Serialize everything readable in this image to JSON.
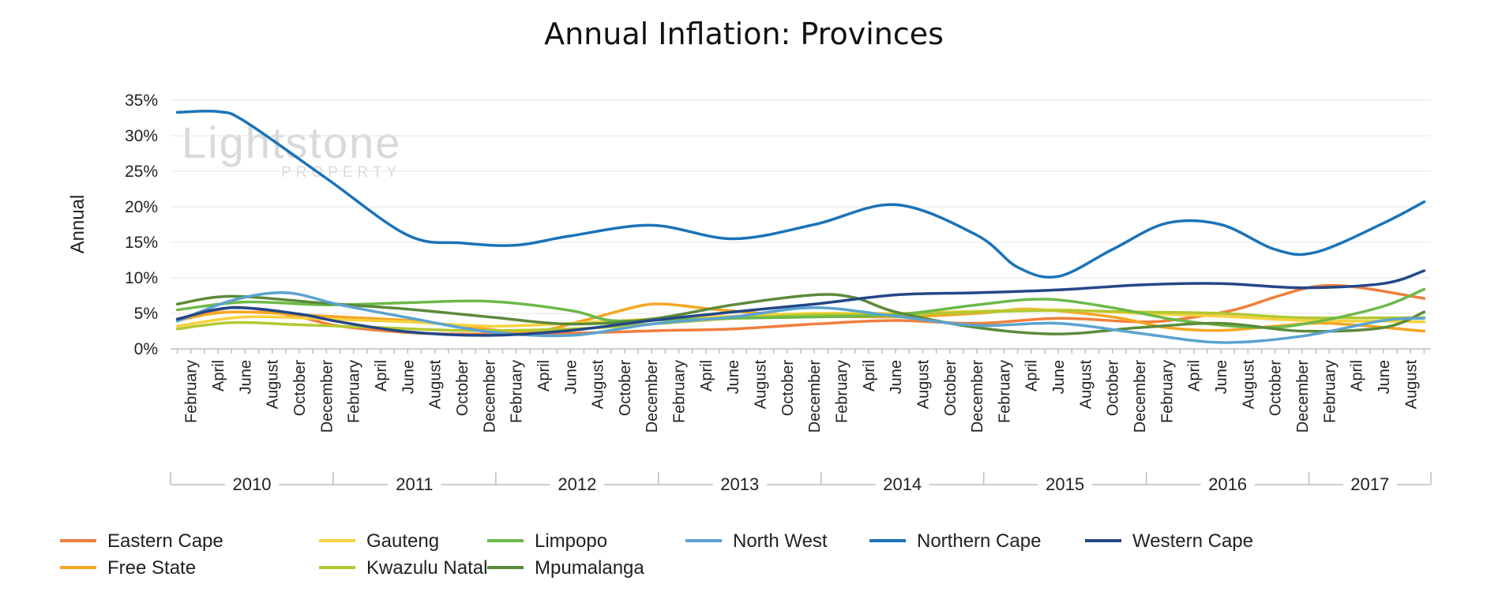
{
  "watermark": {
    "brand": "Lightstone",
    "sub": "PROPERTY"
  },
  "chart_data": {
    "type": "line",
    "title": "Annual Inflation: Provinces",
    "ylabel": "Annual",
    "xlabel": "",
    "ylim": [
      0,
      35
    ],
    "yticks": [
      0,
      5,
      10,
      15,
      20,
      25,
      30,
      35
    ],
    "ytick_format": "percent",
    "grid": true,
    "legend_position": "bottom",
    "x_start": "2010-01",
    "x_end": "2017-09",
    "months_visible": [
      "February",
      "April",
      "June",
      "August",
      "October",
      "December"
    ],
    "years": [
      "2010",
      "2011",
      "2012",
      "2013",
      "2014",
      "2015",
      "2016",
      "2017"
    ],
    "series": [
      {
        "name": "Eastern Cape",
        "color": "#F07F3C",
        "points": [
          [
            "2010-01",
            4.2
          ],
          [
            "2010-04",
            5.5
          ],
          [
            "2010-06",
            5.8
          ],
          [
            "2010-10",
            4.5
          ],
          [
            "2011-01",
            3.2
          ],
          [
            "2011-06",
            2.3
          ],
          [
            "2011-10",
            2.1
          ],
          [
            "2012-06",
            2.2
          ],
          [
            "2013-01",
            2.6
          ],
          [
            "2013-06",
            2.8
          ],
          [
            "2013-12",
            3.5
          ],
          [
            "2014-06",
            4.0
          ],
          [
            "2014-12",
            3.6
          ],
          [
            "2015-06",
            4.3
          ],
          [
            "2015-12",
            3.8
          ],
          [
            "2016-03",
            4.2
          ],
          [
            "2016-07",
            5.5
          ],
          [
            "2016-10",
            7.3
          ],
          [
            "2017-01",
            8.8
          ],
          [
            "2017-04",
            8.7
          ],
          [
            "2017-09",
            7.1
          ]
        ]
      },
      {
        "name": "Free State",
        "color": "#F5A623",
        "points": [
          [
            "2010-01",
            4.0
          ],
          [
            "2010-05",
            5.2
          ],
          [
            "2010-12",
            4.6
          ],
          [
            "2011-06",
            4.0
          ],
          [
            "2011-10",
            3.2
          ],
          [
            "2012-03",
            2.4
          ],
          [
            "2012-07",
            4.0
          ],
          [
            "2012-11",
            6.0
          ],
          [
            "2013-01",
            6.3
          ],
          [
            "2013-05",
            5.5
          ],
          [
            "2013-10",
            4.8
          ],
          [
            "2014-06",
            4.5
          ],
          [
            "2014-12",
            5.0
          ],
          [
            "2015-04",
            5.6
          ],
          [
            "2015-10",
            4.5
          ],
          [
            "2016-02",
            3.0
          ],
          [
            "2016-06",
            2.6
          ],
          [
            "2016-10",
            3.2
          ],
          [
            "2017-02",
            3.6
          ],
          [
            "2017-09",
            2.5
          ]
        ]
      },
      {
        "name": "Gauteng",
        "color": "#F7D13C",
        "points": [
          [
            "2010-01",
            3.2
          ],
          [
            "2010-06",
            4.5
          ],
          [
            "2010-12",
            4.2
          ],
          [
            "2011-06",
            3.8
          ],
          [
            "2011-12",
            3.2
          ],
          [
            "2012-06",
            3.6
          ],
          [
            "2012-12",
            4.2
          ],
          [
            "2013-06",
            4.6
          ],
          [
            "2013-12",
            5.0
          ],
          [
            "2014-06",
            5.0
          ],
          [
            "2014-12",
            5.3
          ],
          [
            "2015-06",
            5.5
          ],
          [
            "2015-12",
            5.0
          ],
          [
            "2016-06",
            4.6
          ],
          [
            "2016-12",
            4.0
          ],
          [
            "2017-06",
            3.9
          ],
          [
            "2017-09",
            3.8
          ]
        ]
      },
      {
        "name": "Kwazulu Natal",
        "color": "#B3C832",
        "points": [
          [
            "2010-01",
            2.8
          ],
          [
            "2010-05",
            3.7
          ],
          [
            "2010-10",
            3.4
          ],
          [
            "2011-04",
            3.0
          ],
          [
            "2011-10",
            2.6
          ],
          [
            "2012-06",
            2.8
          ],
          [
            "2012-12",
            3.5
          ],
          [
            "2013-06",
            4.3
          ],
          [
            "2013-12",
            4.8
          ],
          [
            "2014-06",
            4.8
          ],
          [
            "2014-12",
            5.2
          ],
          [
            "2015-06",
            5.4
          ],
          [
            "2015-12",
            5.2
          ],
          [
            "2016-06",
            5.0
          ],
          [
            "2016-12",
            4.4
          ],
          [
            "2017-09",
            4.4
          ]
        ]
      },
      {
        "name": "Limpopo",
        "color": "#6CB949",
        "points": [
          [
            "2010-01",
            5.5
          ],
          [
            "2010-06",
            6.6
          ],
          [
            "2010-12",
            6.2
          ],
          [
            "2011-06",
            6.5
          ],
          [
            "2011-12",
            6.7
          ],
          [
            "2012-06",
            5.4
          ],
          [
            "2012-09",
            4.0
          ],
          [
            "2013-01",
            4.1
          ],
          [
            "2013-06",
            4.3
          ],
          [
            "2013-12",
            4.5
          ],
          [
            "2014-06",
            4.8
          ],
          [
            "2014-12",
            6.2
          ],
          [
            "2015-05",
            7.0
          ],
          [
            "2015-10",
            5.8
          ],
          [
            "2016-03",
            4.0
          ],
          [
            "2016-09",
            3.0
          ],
          [
            "2017-01",
            3.8
          ],
          [
            "2017-06",
            6.0
          ],
          [
            "2017-09",
            8.4
          ]
        ]
      },
      {
        "name": "Mpumalanga",
        "color": "#5B8A3A",
        "points": [
          [
            "2010-01",
            6.3
          ],
          [
            "2010-05",
            7.4
          ],
          [
            "2010-12",
            6.4
          ],
          [
            "2011-06",
            5.6
          ],
          [
            "2011-12",
            4.5
          ],
          [
            "2012-06",
            3.5
          ],
          [
            "2012-12",
            4.2
          ],
          [
            "2013-06",
            6.2
          ],
          [
            "2013-12",
            7.6
          ],
          [
            "2014-03",
            7.2
          ],
          [
            "2014-06",
            5.2
          ],
          [
            "2014-12",
            3.0
          ],
          [
            "2015-06",
            2.1
          ],
          [
            "2015-12",
            3.0
          ],
          [
            "2016-06",
            3.6
          ],
          [
            "2016-12",
            2.5
          ],
          [
            "2017-06",
            3.0
          ],
          [
            "2017-09",
            5.2
          ]
        ]
      },
      {
        "name": "North West",
        "color": "#5BA3D0",
        "points": [
          [
            "2010-01",
            3.9
          ],
          [
            "2010-05",
            6.8
          ],
          [
            "2010-09",
            7.9
          ],
          [
            "2011-01",
            6.2
          ],
          [
            "2011-06",
            4.4
          ],
          [
            "2011-12",
            2.4
          ],
          [
            "2012-06",
            1.9
          ],
          [
            "2012-12",
            3.5
          ],
          [
            "2013-06",
            4.5
          ],
          [
            "2013-12",
            5.8
          ],
          [
            "2014-06",
            4.6
          ],
          [
            "2014-12",
            3.3
          ],
          [
            "2015-06",
            3.6
          ],
          [
            "2015-12",
            2.2
          ],
          [
            "2016-06",
            0.9
          ],
          [
            "2016-12",
            1.8
          ],
          [
            "2017-06",
            4.0
          ],
          [
            "2017-09",
            4.3
          ]
        ]
      },
      {
        "name": "Northern Cape",
        "color": "#1A73B8",
        "points": [
          [
            "2010-01",
            33.3
          ],
          [
            "2010-04",
            33.4
          ],
          [
            "2010-06",
            32.0
          ],
          [
            "2010-12",
            24.0
          ],
          [
            "2011-06",
            16.0
          ],
          [
            "2011-10",
            14.9
          ],
          [
            "2012-02",
            14.6
          ],
          [
            "2012-06",
            15.9
          ],
          [
            "2012-12",
            17.4
          ],
          [
            "2013-06",
            15.5
          ],
          [
            "2013-12",
            17.5
          ],
          [
            "2014-06",
            20.3
          ],
          [
            "2014-12",
            16.0
          ],
          [
            "2015-03",
            11.5
          ],
          [
            "2015-06",
            10.2
          ],
          [
            "2015-10",
            14.0
          ],
          [
            "2016-02",
            17.7
          ],
          [
            "2016-06",
            17.5
          ],
          [
            "2016-10",
            14.0
          ],
          [
            "2017-01",
            13.6
          ],
          [
            "2017-06",
            17.7
          ],
          [
            "2017-09",
            20.7
          ]
        ]
      },
      {
        "name": "Western Cape",
        "color": "#234789",
        "points": [
          [
            "2010-01",
            4.2
          ],
          [
            "2010-05",
            5.8
          ],
          [
            "2010-10",
            4.9
          ],
          [
            "2011-01",
            3.8
          ],
          [
            "2011-06",
            2.4
          ],
          [
            "2011-12",
            1.9
          ],
          [
            "2012-06",
            2.6
          ],
          [
            "2012-12",
            4.0
          ],
          [
            "2013-06",
            5.2
          ],
          [
            "2013-12",
            6.3
          ],
          [
            "2014-06",
            7.6
          ],
          [
            "2014-12",
            7.9
          ],
          [
            "2015-06",
            8.3
          ],
          [
            "2015-12",
            9.0
          ],
          [
            "2016-06",
            9.2
          ],
          [
            "2016-12",
            8.6
          ],
          [
            "2017-06",
            9.2
          ],
          [
            "2017-09",
            11.0
          ]
        ]
      }
    ]
  },
  "legend": {
    "rows": [
      [
        "Eastern Cape",
        "Gauteng",
        "Limpopo",
        "North West",
        "Northern Cape",
        "Western Cape"
      ],
      [
        "Free State",
        "Kwazulu Natal",
        "Mpumalanga"
      ]
    ]
  }
}
